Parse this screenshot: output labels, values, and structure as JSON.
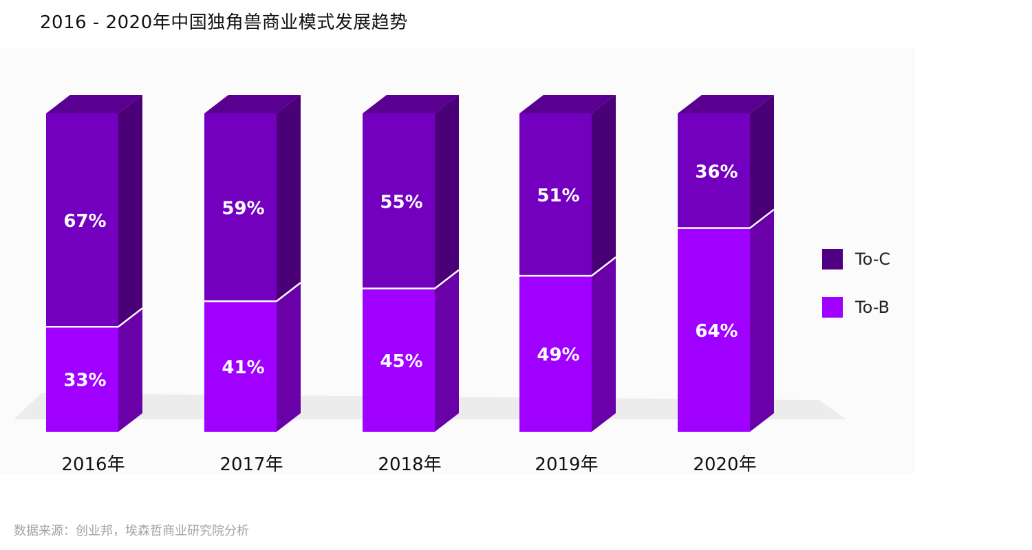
{
  "title": "2016 - 2020年中国独角兽商业模式发展趋势",
  "source": "数据来源：创业邦，埃森哲商业研究院分析",
  "colors": {
    "to_c_front": "#7300BE",
    "to_c_side": "#4A0077",
    "to_c_top": "#5A0091",
    "to_b_front": "#A000FF",
    "to_b_side": "#6A00A8",
    "divider": "#ffffff",
    "legend_to_c": "#4F0082",
    "legend_to_b": "#A000FF"
  },
  "chart_data": {
    "type": "bar",
    "stacked": true,
    "unit": "%",
    "categories": [
      "2016年",
      "2017年",
      "2018年",
      "2019年",
      "2020年"
    ],
    "ylim": [
      0,
      100
    ],
    "series": [
      {
        "name": "To-B",
        "values": [
          33,
          41,
          45,
          49,
          64
        ],
        "labels": [
          "33%",
          "41%",
          "45%",
          "49%",
          "64%"
        ]
      },
      {
        "name": "To-C",
        "values": [
          67,
          59,
          55,
          51,
          36
        ],
        "labels": [
          "67%",
          "59%",
          "55%",
          "51%",
          "36%"
        ]
      }
    ],
    "legend": {
      "position": "right",
      "items": [
        "To-C",
        "To-B"
      ]
    }
  }
}
